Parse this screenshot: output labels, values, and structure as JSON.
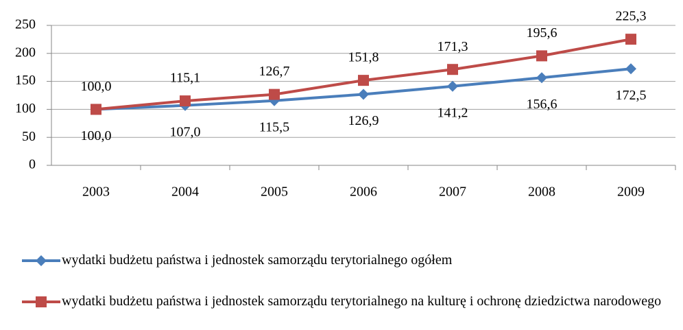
{
  "chart_data": {
    "type": "line",
    "categories": [
      "2003",
      "2004",
      "2005",
      "2006",
      "2007",
      "2008",
      "2009"
    ],
    "series": [
      {
        "name": "wydatki budżetu państwa i jednostek samorządu terytorialnego ogółem",
        "color": "#4a7ebb",
        "marker": "diamond",
        "values": [
          100.0,
          107.0,
          115.5,
          126.9,
          141.2,
          156.6,
          172.5
        ],
        "value_labels": [
          "100,0",
          "107,0",
          "115,5",
          "126,9",
          "141,2",
          "156,6",
          "172,5"
        ]
      },
      {
        "name": "wydatki budżetu państwa i jednostek samorządu terytorialnego na kulturę i ochronę dziedzictwa narodowego",
        "color": "#be4b48",
        "marker": "square",
        "values": [
          100.0,
          115.1,
          126.7,
          151.8,
          171.3,
          195.6,
          225.3
        ],
        "value_labels": [
          "100,0",
          "115,1",
          "126,7",
          "151,8",
          "171,3",
          "195,6",
          "225,3"
        ]
      }
    ],
    "ylim": [
      0,
      250
    ],
    "yticks": [
      0,
      50,
      100,
      150,
      200,
      250
    ],
    "grid": true,
    "legend": "bottom"
  }
}
